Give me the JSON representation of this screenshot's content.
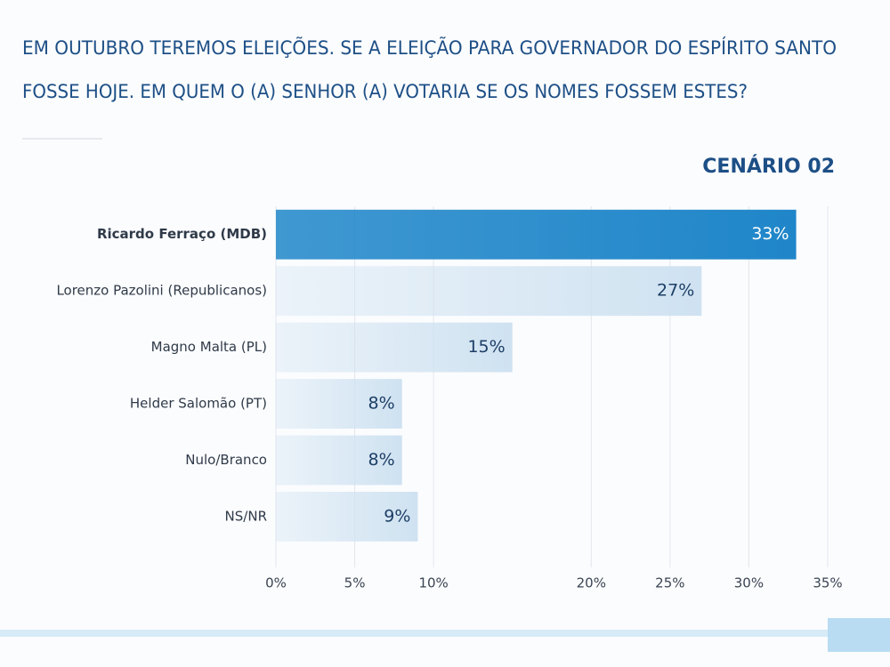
{
  "chart_data": {
    "type": "bar",
    "orientation": "horizontal",
    "title": [
      "EM OUTUBRO TEREMOS ELEIÇÕES. SE A ELEIÇÃO PARA GOVERNADOR DO ESPÍRITO SANTO",
      "FOSSE HOJE. EM QUEM O (A) SENHOR (A) VOTARIA SE OS NOMES FOSSEM ESTES?"
    ],
    "subtitle": "CENÁRIO 02",
    "categories": [
      "Ricardo Ferraço (MDB)",
      "Lorenzo Pazolini (Republicanos)",
      "Magno Malta (PL)",
      "Helder Salomão (PT)",
      "Nulo/Branco",
      "NS/NR"
    ],
    "values": [
      33,
      27,
      15,
      8,
      8,
      9
    ],
    "value_labels": [
      "33%",
      "27%",
      "15%",
      "8%",
      "8%",
      "9%"
    ],
    "colors": [
      "#1f86c9",
      "#cfe2f1",
      "#cfe2f1",
      "#cfe2f1",
      "#cfe2f1",
      "#cfe2f1"
    ],
    "xlim": [
      0,
      35
    ],
    "xticks": [
      {
        "value": 0,
        "label": "0%"
      },
      {
        "value": 5,
        "label": "5%"
      },
      {
        "value": 10,
        "label": "10%"
      },
      {
        "value": 20,
        "label": "20%"
      },
      {
        "value": 25,
        "label": "25%"
      },
      {
        "value": 30,
        "label": "30%"
      },
      {
        "value": 35,
        "label": "35%"
      }
    ],
    "grid": true
  }
}
